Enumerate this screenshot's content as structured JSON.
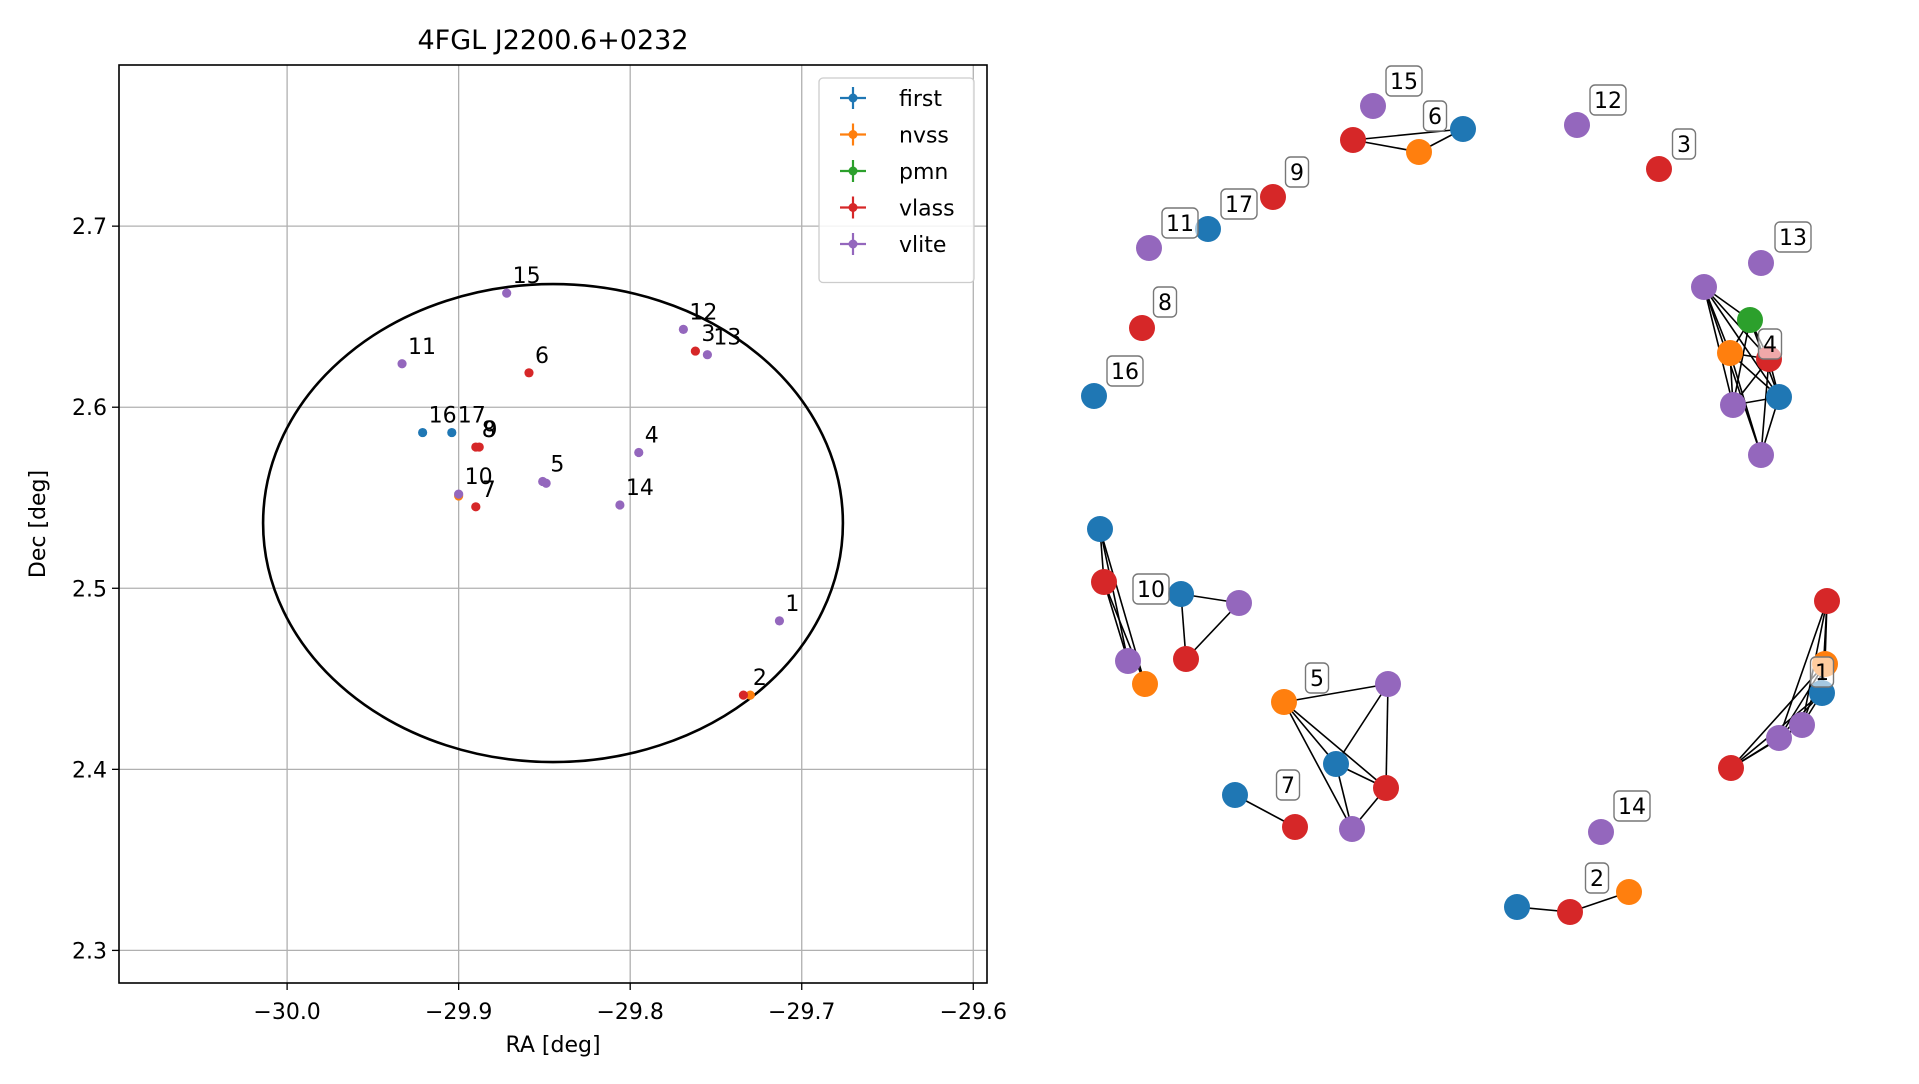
{
  "chart_data": [
    {
      "type": "scatter",
      "title": "4FGL J2200.6+0232",
      "xlabel": "RA [deg]",
      "ylabel": "Dec [deg]",
      "xlim": [
        -30.098,
        -29.592
      ],
      "ylim": [
        2.282,
        2.789
      ],
      "xticks": [
        -30.0,
        -29.9,
        -29.8,
        -29.7,
        -29.6
      ],
      "xtick_labels": [
        "−30.0",
        "−29.9",
        "−29.8",
        "−29.7",
        "−29.6"
      ],
      "yticks": [
        2.3,
        2.4,
        2.5,
        2.6,
        2.7
      ],
      "ytick_labels": [
        "2.3",
        "2.4",
        "2.5",
        "2.6",
        "2.7"
      ],
      "grid": true,
      "legend_position": "top-right",
      "ellipse": {
        "center": [
          -29.845,
          2.536
        ],
        "ra_semi_axis": 0.169,
        "dec_semi_axis": 0.132
      },
      "series": [
        {
          "name": "first",
          "color": "#1f77b4",
          "points": [
            [
              -29.921,
              2.586
            ],
            [
              -29.904,
              2.586
            ]
          ]
        },
        {
          "name": "nvss",
          "color": "#ff7f0e",
          "points": [
            [
              -29.73,
              2.441
            ],
            [
              -29.9,
              2.551
            ]
          ]
        },
        {
          "name": "pmn",
          "color": "#2ca02c",
          "points": []
        },
        {
          "name": "vlass",
          "color": "#d62728",
          "points": [
            [
              -29.734,
              2.441
            ],
            [
              -29.762,
              2.631
            ],
            [
              -29.859,
              2.619
            ],
            [
              -29.89,
              2.545
            ],
            [
              -29.89,
              2.578
            ],
            [
              -29.888,
              2.578
            ]
          ]
        },
        {
          "name": "vlite",
          "color": "#9467bd",
          "points": [
            [
              -29.713,
              2.482
            ],
            [
              -29.769,
              2.643
            ],
            [
              -29.755,
              2.629
            ],
            [
              -29.795,
              2.575
            ],
            [
              -29.851,
              2.559
            ],
            [
              -29.849,
              2.558
            ],
            [
              -29.806,
              2.546
            ],
            [
              -29.933,
              2.624
            ],
            [
              -29.872,
              2.663
            ],
            [
              -29.9,
              2.552
            ]
          ]
        }
      ],
      "annotations": [
        {
          "text": "1",
          "x": -29.713,
          "y": 2.482
        },
        {
          "text": "2",
          "x": -29.732,
          "y": 2.441
        },
        {
          "text": "3",
          "x": -29.762,
          "y": 2.631
        },
        {
          "text": "4",
          "x": -29.795,
          "y": 2.575
        },
        {
          "text": "5",
          "x": -29.85,
          "y": 2.559
        },
        {
          "text": "6",
          "x": -29.859,
          "y": 2.619
        },
        {
          "text": "7",
          "x": -29.89,
          "y": 2.545
        },
        {
          "text": "8",
          "x": -29.89,
          "y": 2.578
        },
        {
          "text": "9",
          "x": -29.889,
          "y": 2.578
        },
        {
          "text": "10",
          "x": -29.9,
          "y": 2.552
        },
        {
          "text": "11",
          "x": -29.933,
          "y": 2.624
        },
        {
          "text": "12",
          "x": -29.769,
          "y": 2.643
        },
        {
          "text": "13",
          "x": -29.755,
          "y": 2.629
        },
        {
          "text": "14",
          "x": -29.806,
          "y": 2.546
        },
        {
          "text": "15",
          "x": -29.872,
          "y": 2.663
        },
        {
          "text": "16",
          "x": -29.921,
          "y": 2.586
        },
        {
          "text": "17",
          "x": -29.904,
          "y": 2.586
        }
      ]
    },
    {
      "type": "network",
      "node_colors": {
        "first": "#1f77b4",
        "nvss": "#ff7f0e",
        "pmn": "#2ca02c",
        "vlass": "#d62728",
        "vlite": "#9467bd"
      },
      "groups": [
        {
          "label": "1",
          "nodes": [
            "vlass",
            "nvss",
            "first",
            "vlite",
            "vlite",
            "vlass"
          ],
          "edges": [
            [
              0,
              1
            ],
            [
              0,
              2
            ],
            [
              0,
              3
            ],
            [
              0,
              4
            ],
            [
              1,
              2
            ],
            [
              1,
              3
            ],
            [
              1,
              4
            ],
            [
              1,
              5
            ],
            [
              2,
              3
            ],
            [
              2,
              4
            ],
            [
              2,
              5
            ],
            [
              3,
              4
            ],
            [
              3,
              5
            ],
            [
              4,
              5
            ]
          ]
        },
        {
          "label": "2",
          "nodes": [
            "first",
            "vlass",
            "nvss"
          ],
          "edges": [
            [
              0,
              1
            ],
            [
              1,
              2
            ]
          ]
        },
        {
          "label": "3",
          "nodes": [
            "vlass"
          ],
          "edges": []
        },
        {
          "label": "4",
          "nodes": [
            "vlite",
            "pmn",
            "nvss",
            "vlass",
            "first",
            "vlite",
            "vlite"
          ],
          "edges": [
            [
              0,
              1
            ],
            [
              0,
              2
            ],
            [
              0,
              3
            ],
            [
              0,
              4
            ],
            [
              0,
              5
            ],
            [
              0,
              6
            ],
            [
              1,
              2
            ],
            [
              1,
              3
            ],
            [
              1,
              4
            ],
            [
              1,
              5
            ],
            [
              2,
              3
            ],
            [
              2,
              4
            ],
            [
              2,
              5
            ],
            [
              2,
              6
            ],
            [
              3,
              4
            ],
            [
              3,
              5
            ],
            [
              3,
              6
            ],
            [
              4,
              5
            ],
            [
              4,
              6
            ]
          ]
        },
        {
          "label": "5",
          "nodes": [
            "nvss",
            "vlite",
            "first",
            "vlass",
            "vlite"
          ],
          "edges": [
            [
              0,
              1
            ],
            [
              0,
              2
            ],
            [
              0,
              3
            ],
            [
              0,
              4
            ],
            [
              1,
              2
            ],
            [
              1,
              3
            ],
            [
              2,
              3
            ],
            [
              2,
              4
            ],
            [
              3,
              4
            ]
          ]
        },
        {
          "label": "6",
          "nodes": [
            "vlass",
            "nvss",
            "first"
          ],
          "edges": [
            [
              0,
              1
            ],
            [
              0,
              2
            ],
            [
              1,
              2
            ]
          ]
        },
        {
          "label": "7",
          "nodes": [
            "first",
            "vlass"
          ],
          "edges": [
            [
              0,
              1
            ]
          ]
        },
        {
          "label": "8",
          "nodes": [
            "vlass"
          ],
          "edges": []
        },
        {
          "label": "9",
          "nodes": [
            "vlass"
          ],
          "edges": []
        },
        {
          "label": "10",
          "nodes": [
            "first",
            "vlass",
            "vlite",
            "nvss",
            "first",
            "vlass",
            "vlite"
          ],
          "edges": [
            [
              0,
              1
            ],
            [
              0,
              2
            ],
            [
              0,
              3
            ],
            [
              1,
              2
            ],
            [
              1,
              3
            ],
            [
              4,
              5
            ],
            [
              4,
              6
            ],
            [
              5,
              6
            ]
          ]
        },
        {
          "label": "11",
          "nodes": [
            "vlite"
          ],
          "edges": []
        },
        {
          "label": "12",
          "nodes": [
            "vlite"
          ],
          "edges": []
        },
        {
          "label": "13",
          "nodes": [
            "vlite"
          ],
          "edges": []
        },
        {
          "label": "14",
          "nodes": [
            "vlite"
          ],
          "edges": []
        },
        {
          "label": "15",
          "nodes": [
            "vlite"
          ],
          "edges": []
        },
        {
          "label": "16",
          "nodes": [
            "first"
          ],
          "edges": []
        },
        {
          "label": "17",
          "nodes": [
            "first"
          ],
          "edges": []
        }
      ]
    }
  ]
}
